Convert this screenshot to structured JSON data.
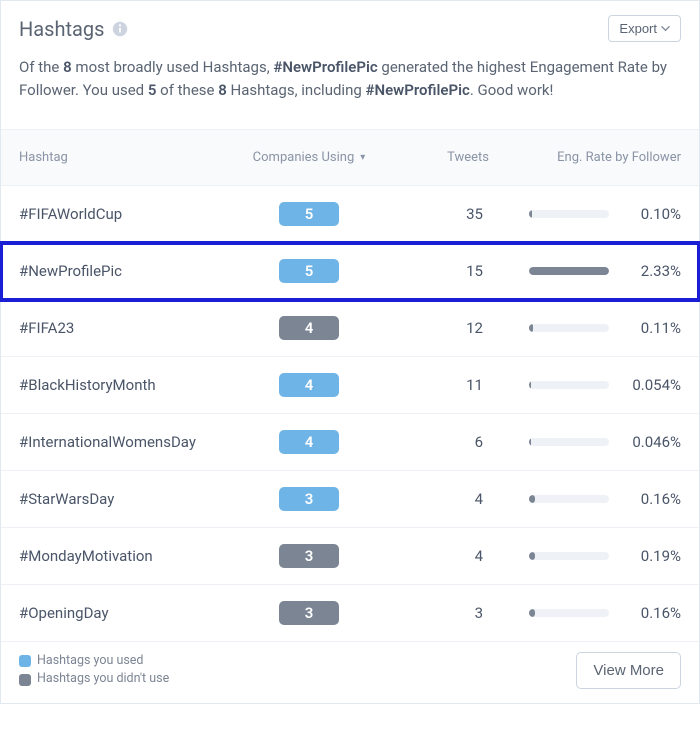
{
  "header": {
    "title": "Hashtags",
    "export_label": "Export"
  },
  "summary": {
    "part1": "Of the ",
    "count1": "8",
    "part2": " most broadly used Hashtags, ",
    "top_hashtag": "#NewProfilePic",
    "part3": " generated the highest Engagement Rate by Follower. You used ",
    "used_count": "5",
    "part4": " of these ",
    "count2": "8",
    "part5": " Hashtags, including ",
    "top_hashtag2": "#NewProfilePic",
    "part6": ". Good work!"
  },
  "columns": {
    "hashtag": "Hashtag",
    "companies": "Companies Using",
    "tweets": "Tweets",
    "eng": "Eng. Rate by Follower"
  },
  "rows": [
    {
      "hashtag": "#FIFAWorldCup",
      "companies": "5",
      "used": true,
      "tweets": "35",
      "eng_pct": "0.10%",
      "bar_pct": 4,
      "highlight": false
    },
    {
      "hashtag": "#NewProfilePic",
      "companies": "5",
      "used": true,
      "tweets": "15",
      "eng_pct": "2.33%",
      "bar_pct": 100,
      "highlight": true
    },
    {
      "hashtag": "#FIFA23",
      "companies": "4",
      "used": false,
      "tweets": "12",
      "eng_pct": "0.11%",
      "bar_pct": 5,
      "highlight": false
    },
    {
      "hashtag": "#BlackHistoryMonth",
      "companies": "4",
      "used": true,
      "tweets": "11",
      "eng_pct": "0.054%",
      "bar_pct": 2,
      "highlight": false
    },
    {
      "hashtag": "#InternationalWomensDay",
      "companies": "4",
      "used": true,
      "tweets": "6",
      "eng_pct": "0.046%",
      "bar_pct": 2,
      "highlight": false
    },
    {
      "hashtag": "#StarWarsDay",
      "companies": "3",
      "used": true,
      "tweets": "4",
      "eng_pct": "0.16%",
      "bar_pct": 7,
      "highlight": false
    },
    {
      "hashtag": "#MondayMotivation",
      "companies": "3",
      "used": false,
      "tweets": "4",
      "eng_pct": "0.19%",
      "bar_pct": 8,
      "highlight": false
    },
    {
      "hashtag": "#OpeningDay",
      "companies": "3",
      "used": false,
      "tweets": "3",
      "eng_pct": "0.16%",
      "bar_pct": 7,
      "highlight": false
    }
  ],
  "legend": {
    "used": "Hashtags you used",
    "unused": "Hashtags you didn't use"
  },
  "footer": {
    "view_more": "View More"
  },
  "styling": {
    "used_color": "#6fb4e6",
    "unused_color": "#7c8594",
    "highlight_border": "#1a1fd6",
    "bar_track_color": "#eef1f5",
    "bar_fill_color": "#7c8594",
    "border_color": "#edf1f5",
    "text_color": "#4a5568",
    "muted_text": "#8a94a6",
    "font_size_body": 15,
    "font_size_header": 13
  }
}
